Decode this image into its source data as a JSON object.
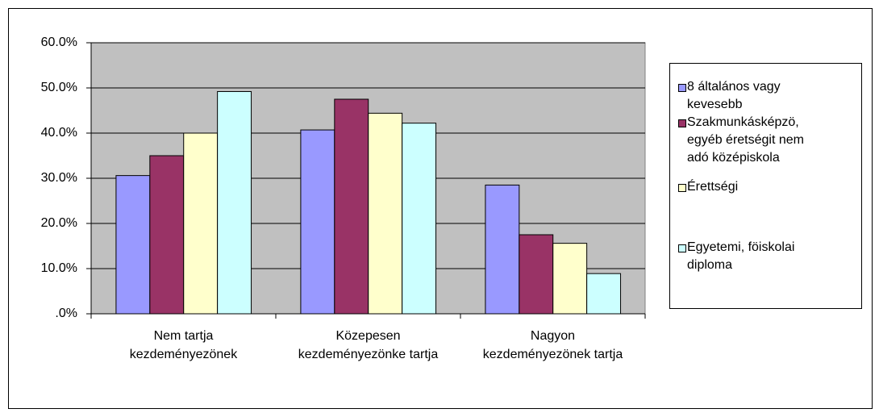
{
  "chart_data": {
    "type": "bar",
    "categories": [
      "Nem tartja kezdeményezönek",
      "Közepesen kezdeményezönke tartja",
      "Nagyon kezdeményezönek tartja"
    ],
    "series": [
      {
        "name": "8 általános vagy kevesebb",
        "color": "#9999ff",
        "values": [
          30.6,
          40.7,
          28.5
        ]
      },
      {
        "name": "Szakmunkásképzö, egyéb éretségit nem adó középiskola",
        "color": "#993366",
        "values": [
          35.0,
          47.5,
          17.5
        ]
      },
      {
        "name": "Érettségi",
        "color": "#ffffcc",
        "values": [
          40.0,
          44.4,
          15.6
        ]
      },
      {
        "name": "Egyetemi, föiskolai diploma",
        "color": "#ccffff",
        "values": [
          49.2,
          42.2,
          8.9
        ]
      }
    ],
    "ylim": [
      0,
      60
    ],
    "yticks": [
      {
        "value": 0,
        "label": ".0%"
      },
      {
        "value": 10,
        "label": "10.0%"
      },
      {
        "value": 20,
        "label": "20.0%"
      },
      {
        "value": 30,
        "label": "30.0%"
      },
      {
        "value": 40,
        "label": "40.0%"
      },
      {
        "value": 50,
        "label": "50.0%"
      },
      {
        "value": 60,
        "label": "60.0%"
      }
    ],
    "grid": true,
    "legend": "right"
  }
}
